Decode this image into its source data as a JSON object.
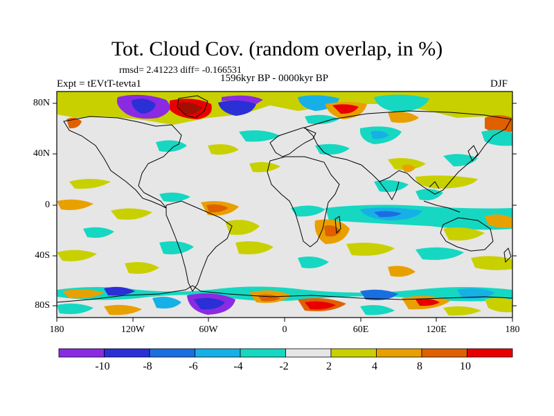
{
  "title": "Tot. Cloud Cov. (random overlap, in %)",
  "stats_line": "rmsd= 2.41223 diff= -0.166531",
  "period": "1596kyr BP - 0000kyr BP",
  "experiment": "Expt = tEVtT-tevta1",
  "season": "DJF",
  "lat_labels": [
    "80N",
    "40N",
    "0",
    "40S",
    "80S"
  ],
  "lon_labels": [
    "180",
    "120W",
    "60W",
    "0",
    "60E",
    "120E",
    "180"
  ],
  "colorbar": {
    "labels": [
      "-10",
      "-8",
      "-6",
      "-4",
      "-2",
      "2",
      "4",
      "8",
      "10"
    ],
    "colors": [
      "#8a2be2",
      "#2b2fd6",
      "#1a6fe0",
      "#17b0e6",
      "#16d7c2",
      "#e6e6e6",
      "#c9d000",
      "#e8a000",
      "#e06000",
      "#e80000"
    ]
  },
  "palette": {
    "background": "#e6e6e6",
    "purple": "#8a2be2",
    "blue": "#2b2fd6",
    "mid_blue": "#1a6fe0",
    "light_blue": "#17b0e6",
    "cyan": "#16d7c2",
    "yellow": "#c9d000",
    "orange": "#e8a000",
    "dark_orange": "#e06000",
    "red": "#e80000"
  }
}
